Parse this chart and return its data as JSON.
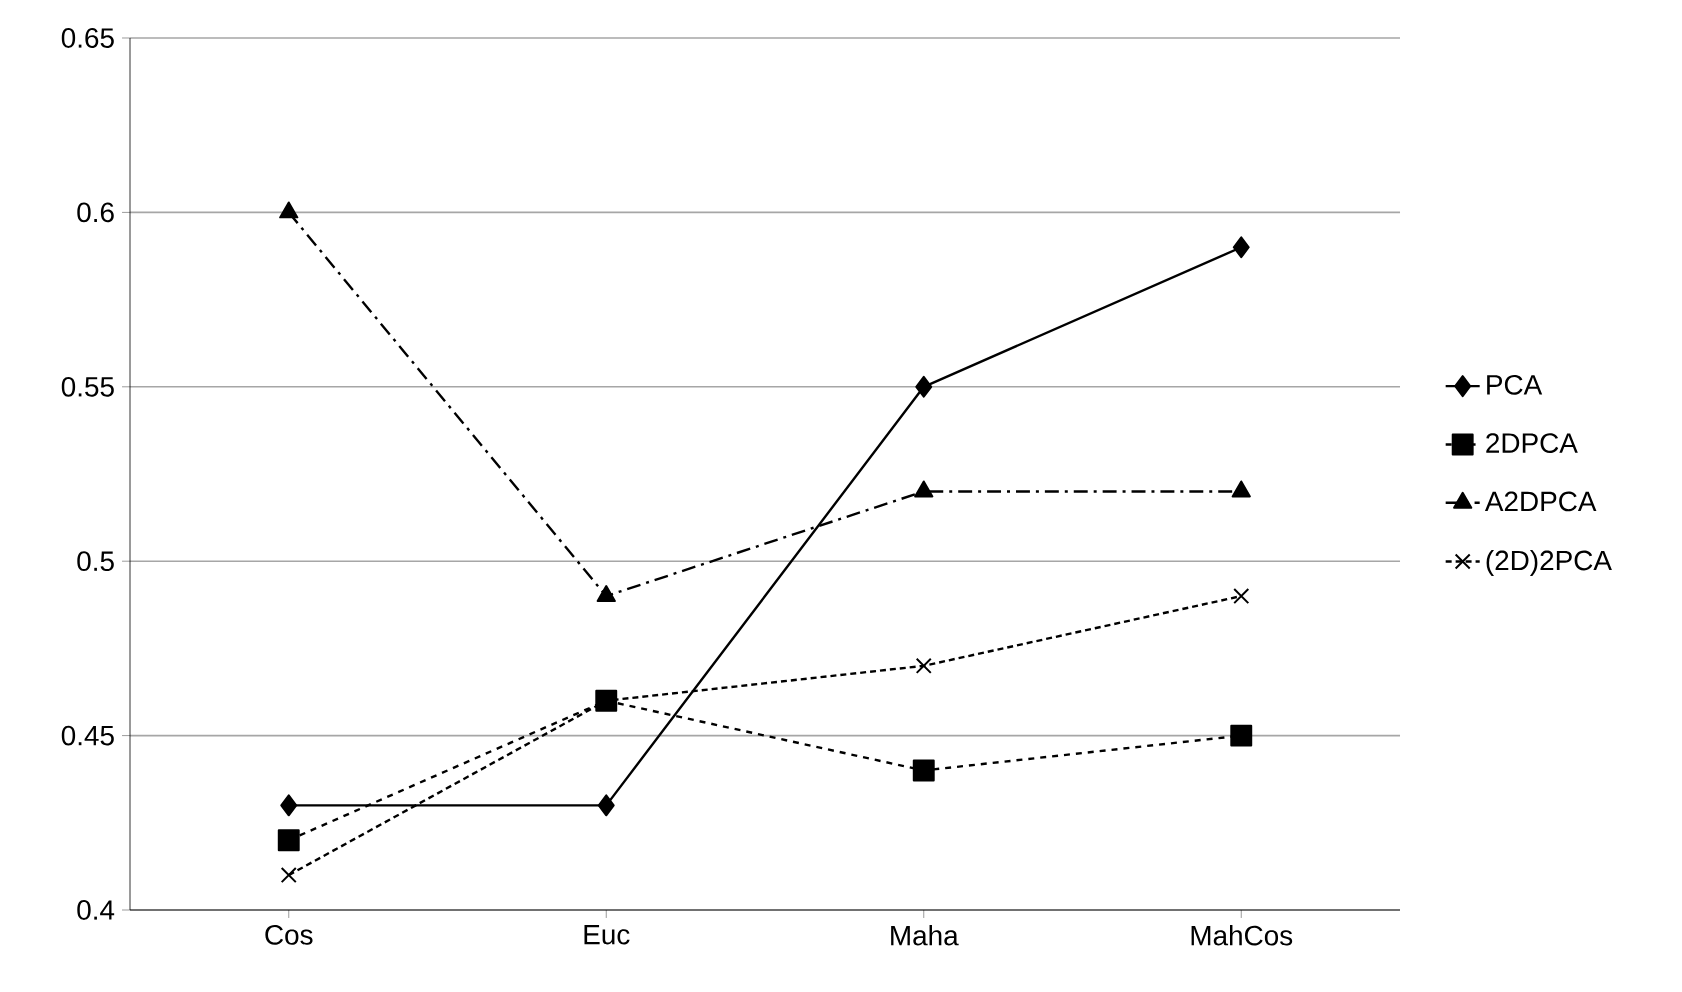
{
  "chart_data": {
    "type": "line",
    "categories": [
      "Cos",
      "Euc",
      "Maha",
      "MahCos"
    ],
    "series": [
      {
        "name": "PCA",
        "color": "#000000",
        "marker": "diamond",
        "line_style": "solid",
        "values": [
          0.43,
          0.43,
          0.55,
          0.59
        ]
      },
      {
        "name": "2DPCA",
        "color": "#000000",
        "marker": "square",
        "line_style": "dashed",
        "values": [
          0.42,
          0.46,
          0.44,
          0.45
        ]
      },
      {
        "name": "A2DPCA",
        "color": "#000000",
        "marker": "triangle",
        "line_style": "dashdot",
        "values": [
          0.6,
          0.49,
          0.52,
          0.52
        ]
      },
      {
        "name": "(2D)2PCA",
        "color": "#000000",
        "marker": "cross",
        "line_style": "dotted",
        "values": [
          0.41,
          0.46,
          0.47,
          0.49
        ]
      }
    ],
    "ylim": [
      0.4,
      0.65
    ],
    "yticks": [
      0.4,
      0.45,
      0.5,
      0.55,
      0.6,
      0.65
    ],
    "grid": "y",
    "legend": "right"
  }
}
